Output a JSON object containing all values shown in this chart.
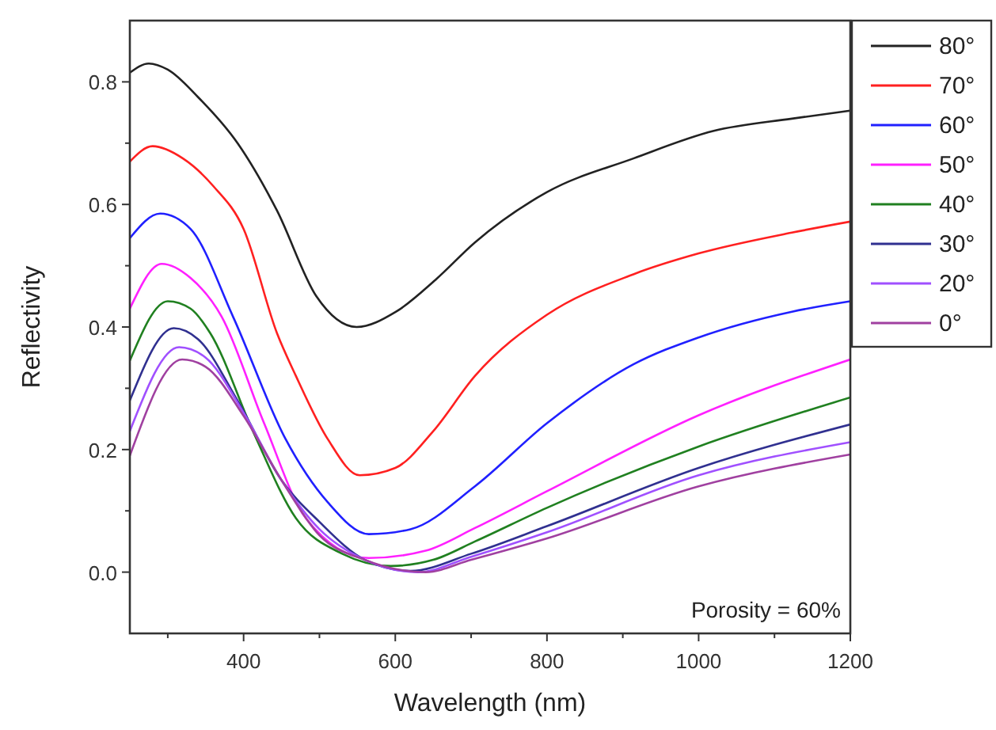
{
  "chart_data": {
    "type": "line",
    "xlabel": "Wavelength (nm)",
    "ylabel": "Reflectivity",
    "xlim": [
      250,
      1200
    ],
    "ylim": [
      -0.1,
      0.9
    ],
    "xticks": [
      {
        "value": 300,
        "label": null
      },
      400,
      {
        "value": 500,
        "label": null
      },
      600,
      {
        "value": 700,
        "label": null
      },
      800,
      {
        "value": 900,
        "label": null
      },
      1000,
      {
        "value": 1100,
        "label": null
      },
      1200
    ],
    "yticks": [
      {
        "value": 0,
        "label": "0.0"
      },
      {
        "value": 0.1,
        "label": null
      },
      0.2,
      {
        "value": 0.3,
        "label": null
      },
      0.4,
      {
        "value": 0.5,
        "label": null
      },
      0.6,
      {
        "value": 0.7,
        "label": null
      },
      0.8
    ],
    "legend": "right",
    "grid": false,
    "marker": "none",
    "line_style": "solid",
    "annotations": [
      "Porosity = 60%"
    ],
    "series": [
      {
        "name": "80°",
        "color": "#222222",
        "x": [
          250,
          275,
          300,
          340,
          392,
          444,
          496,
          549,
          601,
          653,
          705,
          800,
          914,
          1020,
          1123,
          1200
        ],
        "values": [
          0.815,
          0.83,
          0.82,
          0.775,
          0.7,
          0.59,
          0.45,
          0.4,
          0.425,
          0.477,
          0.538,
          0.62,
          0.675,
          0.72,
          0.74,
          0.753
        ]
      },
      {
        "name": "70°",
        "color": "#ff2020",
        "x": [
          250,
          280,
          320,
          360,
          400,
          444,
          469,
          511,
          553,
          600,
          650,
          705,
          800,
          914,
          1000,
          1123,
          1200
        ],
        "values": [
          0.67,
          0.695,
          0.675,
          0.63,
          0.56,
          0.39,
          0.32,
          0.217,
          0.158,
          0.17,
          0.23,
          0.32,
          0.42,
          0.486,
          0.52,
          0.554,
          0.572
        ]
      },
      {
        "name": "60°",
        "color": "#2020ff",
        "x": [
          250,
          290,
          330,
          386,
          455,
          511,
          565,
          620,
          705,
          800,
          914,
          1000,
          1123,
          1200
        ],
        "values": [
          0.545,
          0.585,
          0.56,
          0.417,
          0.218,
          0.114,
          0.062,
          0.07,
          0.14,
          0.243,
          0.339,
          0.383,
          0.425,
          0.442
        ]
      },
      {
        "name": "50°",
        "color": "#ff20ff",
        "x": [
          250,
          292,
          330,
          371,
          427,
          482,
          565,
          640,
          705,
          800,
          1000,
          1200
        ],
        "values": [
          0.43,
          0.503,
          0.48,
          0.417,
          0.243,
          0.088,
          0.023,
          0.035,
          0.072,
          0.132,
          0.256,
          0.347
        ]
      },
      {
        "name": "40°",
        "color": "#208020",
        "x": [
          250,
          300,
          330,
          356,
          413,
          469,
          530,
          594,
          650,
          705,
          800,
          1000,
          1200
        ],
        "values": [
          0.345,
          0.442,
          0.43,
          0.39,
          0.228,
          0.088,
          0.03,
          0.01,
          0.02,
          0.05,
          0.105,
          0.205,
          0.285
        ]
      },
      {
        "name": "30°",
        "color": "#303090",
        "x": [
          250,
          308,
          340,
          392,
          450,
          500,
          560,
          620,
          700,
          800,
          1000,
          1200
        ],
        "values": [
          0.28,
          0.398,
          0.38,
          0.28,
          0.15,
          0.082,
          0.02,
          0.002,
          0.03,
          0.075,
          0.17,
          0.241
        ]
      },
      {
        "name": "20°",
        "color": "#a050ff",
        "x": [
          250,
          315,
          350,
          400,
          450,
          500,
          560,
          630,
          700,
          800,
          1000,
          1200
        ],
        "values": [
          0.23,
          0.367,
          0.35,
          0.26,
          0.15,
          0.07,
          0.02,
          0.0,
          0.025,
          0.065,
          0.158,
          0.212
        ]
      },
      {
        "name": "0°",
        "color": "#a040a0",
        "x": [
          250,
          319,
          350,
          400,
          450,
          500,
          560,
          640,
          700,
          800,
          1000,
          1200
        ],
        "values": [
          0.19,
          0.347,
          0.335,
          0.255,
          0.15,
          0.06,
          0.02,
          0.0,
          0.02,
          0.055,
          0.14,
          0.192
        ]
      }
    ]
  }
}
